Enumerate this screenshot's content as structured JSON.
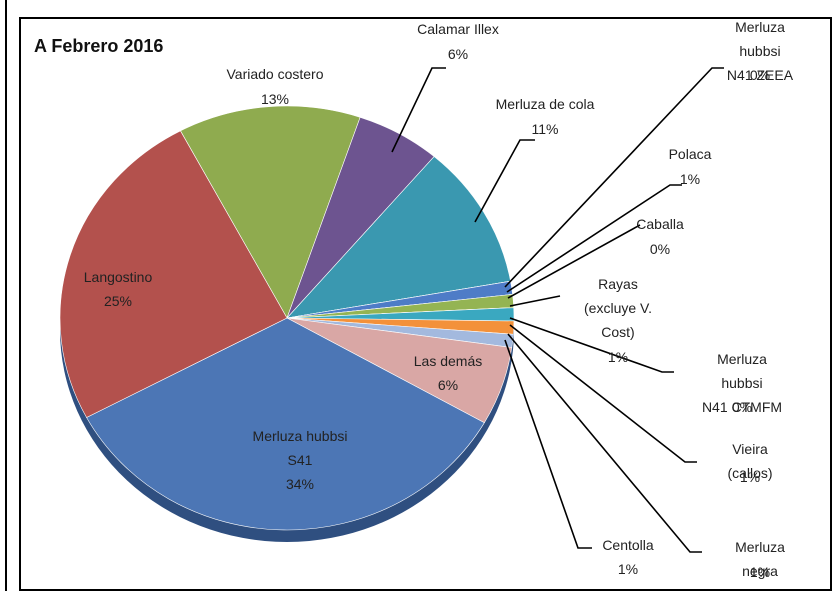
{
  "chart_data": {
    "type": "pie",
    "title": "A Febrero 2016",
    "categories": [
      "Variado costero",
      "Calamar Illex",
      "Merluza de cola",
      "Merluza hubbsi\nN41 ZEEA",
      "Polaca",
      "Caballa",
      "Rayas\n(excluye V.\nCost)",
      "Merluza hubbsi\nN41 CTMFM",
      "Vieira (callos)",
      "Merluza negra",
      "Centolla",
      "Las demás",
      "Merluza hubbsi\nS41",
      "Langostino"
    ],
    "values": [
      13,
      6,
      11,
      0,
      1,
      0,
      1,
      0,
      1,
      1,
      1,
      6,
      34,
      25
    ],
    "value_labels": [
      "13%",
      "6%",
      "11%",
      "0%",
      "1%",
      "0%",
      "1%",
      "0%",
      "1%",
      "1%",
      "1%",
      "6%",
      "34%",
      "25%"
    ],
    "colors": [
      "#8fab4f",
      "#6d5490",
      "#3a98b0",
      "#7f93bd",
      "#4e7cc7",
      "#b04b48",
      "#94b453",
      "#6a55a0",
      "#3aa8c0",
      "#f3913a",
      "#a3b9de",
      "#d9a7a5",
      "#4c76b5",
      "#b3514d"
    ]
  }
}
